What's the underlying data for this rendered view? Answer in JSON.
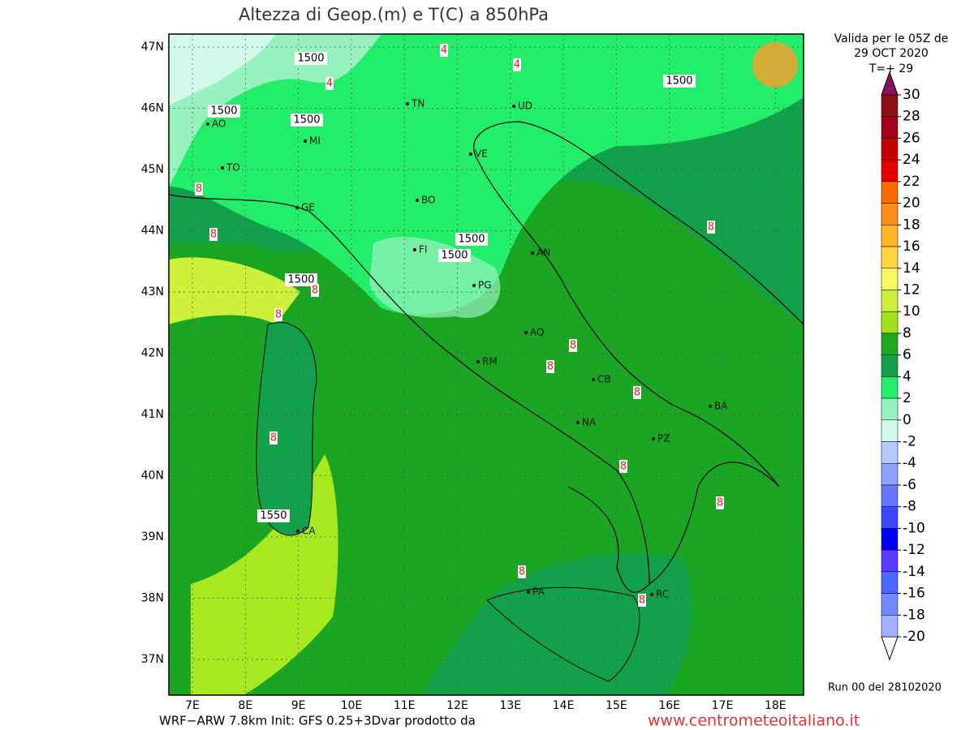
{
  "title": "Altezza di Geop.(m) e T(C) a 850hPa",
  "validity": [
    "Valida per le 05Z de",
    "29 OCT 2020",
    "T=+ 29"
  ],
  "lat_ticks": [
    {
      "value": 47,
      "label": "47N"
    },
    {
      "value": 46,
      "label": "46N"
    },
    {
      "value": 45,
      "label": "45N"
    },
    {
      "value": 44,
      "label": "44N"
    },
    {
      "value": 43,
      "label": "43N"
    },
    {
      "value": 42,
      "label": "42N"
    },
    {
      "value": 41,
      "label": "41N"
    },
    {
      "value": 40,
      "label": "40N"
    },
    {
      "value": 39,
      "label": "39N"
    },
    {
      "value": 38,
      "label": "38N"
    },
    {
      "value": 37,
      "label": "37N"
    }
  ],
  "lon_ticks": [
    {
      "value": 7,
      "label": "7E"
    },
    {
      "value": 8,
      "label": "8E"
    },
    {
      "value": 9,
      "label": "9E"
    },
    {
      "value": 10,
      "label": "10E"
    },
    {
      "value": 11,
      "label": "11E"
    },
    {
      "value": 12,
      "label": "12E"
    },
    {
      "value": 13,
      "label": "13E"
    },
    {
      "value": 14,
      "label": "14E"
    },
    {
      "value": 15,
      "label": "15E"
    },
    {
      "value": 16,
      "label": "16E"
    },
    {
      "value": 17,
      "label": "17E"
    },
    {
      "value": 18,
      "label": "18E"
    }
  ],
  "colorbar": {
    "ticks": [
      30,
      28,
      26,
      24,
      22,
      20,
      18,
      16,
      14,
      12,
      10,
      8,
      6,
      4,
      2,
      0,
      -2,
      -4,
      -6,
      -8,
      -10,
      -12,
      -14,
      -16,
      -18,
      -20
    ],
    "colors": [
      "#8c0f14",
      "#a3001c",
      "#c40000",
      "#e30000",
      "#ff6a00",
      "#ff8c1a",
      "#ffb428",
      "#ffd640",
      "#f6f862",
      "#cdf03a",
      "#a2e21a",
      "#1eaa1e",
      "#12a04a",
      "#22ee6a",
      "#98f2c0",
      "#d2faea",
      "#b4c8ff",
      "#8ca2ff",
      "#6478ff",
      "#3a46ff",
      "#0000f0",
      "#5a3cff",
      "#4868ff",
      "#7488ff",
      "#a4aeff"
    ],
    "top_color": "#8a1060",
    "bottom_color": "#ffffff"
  },
  "cities": [
    "TN",
    "UD",
    "MI",
    "TO",
    "VE",
    "BO",
    "GE",
    "FI",
    "AN",
    "PG",
    "AQ",
    "RM",
    "CB",
    "NA",
    "BA",
    "PZ",
    "CA",
    "PA",
    "RC",
    "AO"
  ],
  "contour_labels": [
    1500,
    1500,
    1500,
    1500,
    1500,
    1500,
    1500,
    1550,
    8,
    8,
    8,
    8,
    8,
    8,
    8,
    8,
    8,
    8,
    8,
    8,
    8,
    4,
    4,
    4
  ],
  "run": "Run 00 del 28102020",
  "footer_left": "WRF−ARW 7.8km Init: GFS 0.25+3Dvar prodotto da",
  "footer_right": "www.centrometeoitaliano.it"
}
